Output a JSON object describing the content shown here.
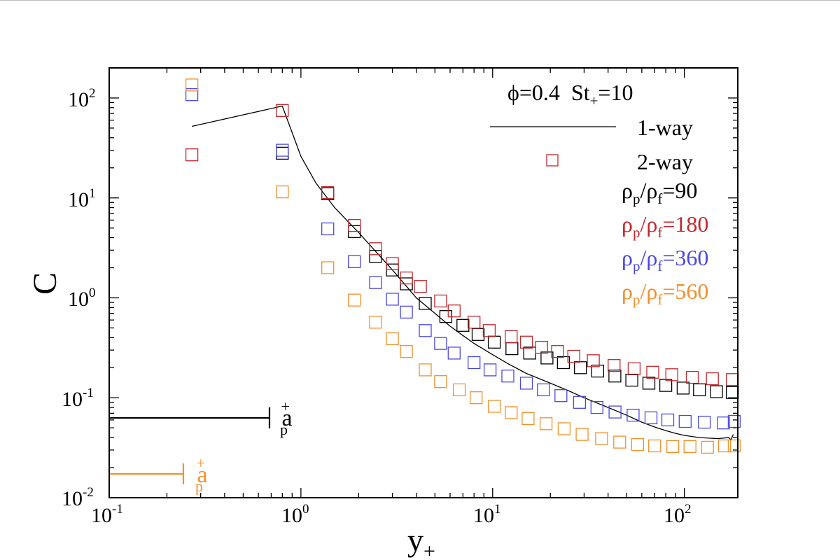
{
  "chart_data": {
    "type": "scatter",
    "title": "",
    "xlabel_main": "y",
    "xlabel_sub": "+",
    "ylabel": "C",
    "xscale": "log",
    "yscale": "log",
    "xlim": [
      0.1,
      190
    ],
    "ylim": [
      0.01,
      200
    ],
    "x_ticks": [
      {
        "value": 0.1,
        "base": "10",
        "exp": "-1"
      },
      {
        "value": 1,
        "base": "10",
        "exp": "0"
      },
      {
        "value": 10,
        "base": "10",
        "exp": "1"
      },
      {
        "value": 100,
        "base": "10",
        "exp": "2"
      }
    ],
    "y_ticks": [
      {
        "value": 0.01,
        "base": "10",
        "exp": "-2"
      },
      {
        "value": 0.1,
        "base": "10",
        "exp": "-1"
      },
      {
        "value": 1,
        "base": "10",
        "exp": "0"
      },
      {
        "value": 10,
        "base": "10",
        "exp": "1"
      },
      {
        "value": 100,
        "base": "10",
        "exp": "2"
      }
    ],
    "legend": {
      "header": {
        "phi": "ϕ=0.4",
        "st_main": "St",
        "st_sub": "+",
        "st_rest": "=10"
      },
      "line_label": "1-way",
      "marker_label": "2-way",
      "marker_color": "#c0282d",
      "ratio_entries": [
        {
          "rho": "ρ",
          "p": "p",
          "slash": "/",
          "f": "f",
          "value": "=90",
          "color": "#000000"
        },
        {
          "rho": "ρ",
          "p": "p",
          "slash": "/",
          "f": "f",
          "value": "=180",
          "color": "#c0282d"
        },
        {
          "rho": "ρ",
          "p": "p",
          "slash": "/",
          "f": "f",
          "value": "=360",
          "color": "#4848e0"
        },
        {
          "rho": "ρ",
          "p": "p",
          "slash": "/",
          "f": "f",
          "value": "=560",
          "color": "#f0902a"
        }
      ]
    },
    "annotations": [
      {
        "main": "a",
        "sup": "+",
        "sub": "p",
        "color": "#000000",
        "x_end": 0.7,
        "y": 0.063
      },
      {
        "main": "a",
        "sup": "+",
        "sub": "p",
        "color": "#f0902a",
        "x_end": 0.25,
        "y": 0.018
      }
    ],
    "line_series": {
      "name": "1-way",
      "color": "#000000",
      "points": [
        [
          0.27,
          52
        ],
        [
          0.8,
          83
        ],
        [
          0.9,
          45
        ],
        [
          1.0,
          26
        ],
        [
          1.2,
          14
        ],
        [
          1.5,
          8
        ],
        [
          2.0,
          4.5
        ],
        [
          2.5,
          2.8
        ],
        [
          3.0,
          1.9
        ],
        [
          3.5,
          1.35
        ],
        [
          4.0,
          1.0
        ],
        [
          5.0,
          0.7
        ],
        [
          6.0,
          0.52
        ],
        [
          7.0,
          0.42
        ],
        [
          8.0,
          0.35
        ],
        [
          10,
          0.27
        ],
        [
          12,
          0.22
        ],
        [
          15,
          0.175
        ],
        [
          20,
          0.14
        ],
        [
          25,
          0.117
        ],
        [
          30,
          0.1
        ],
        [
          40,
          0.08
        ],
        [
          50,
          0.067
        ],
        [
          60,
          0.057
        ],
        [
          70,
          0.051
        ],
        [
          80,
          0.047
        ],
        [
          90,
          0.044
        ],
        [
          100,
          0.042
        ],
        [
          120,
          0.04
        ],
        [
          150,
          0.039
        ],
        [
          170,
          0.04
        ],
        [
          175,
          0.038
        ],
        [
          180,
          0.043
        ]
      ]
    },
    "series": [
      {
        "name": "ρp/ρf=90",
        "color": "#000000",
        "points": [
          [
            0.8,
            28
          ],
          [
            1.38,
            11
          ],
          [
            1.9,
            4.6
          ],
          [
            2.45,
            2.6
          ],
          [
            3.0,
            1.9
          ],
          [
            3.55,
            1.38
          ],
          [
            4.45,
            0.88
          ],
          [
            5.7,
            0.65
          ],
          [
            7.0,
            0.53
          ],
          [
            8.4,
            0.43
          ],
          [
            10.2,
            0.36
          ],
          [
            12.6,
            0.31
          ],
          [
            15.6,
            0.28
          ],
          [
            19.2,
            0.25
          ],
          [
            23.4,
            0.225
          ],
          [
            28.7,
            0.2
          ],
          [
            35.3,
            0.185
          ],
          [
            43.4,
            0.165
          ],
          [
            53.2,
            0.15
          ],
          [
            65.3,
            0.14
          ],
          [
            80.0,
            0.133
          ],
          [
            98.5,
            0.125
          ],
          [
            120,
            0.12
          ],
          [
            147,
            0.115
          ],
          [
            178,
            0.113
          ]
        ]
      },
      {
        "name": "ρp/ρf=180",
        "color": "#c0282d",
        "points": [
          [
            0.27,
            27
          ],
          [
            0.8,
            75
          ],
          [
            1.38,
            11.3
          ],
          [
            1.9,
            5.3
          ],
          [
            2.45,
            3.1
          ],
          [
            3.0,
            2.2
          ],
          [
            3.55,
            1.58
          ],
          [
            4.2,
            1.3
          ],
          [
            5.35,
            0.93
          ],
          [
            6.3,
            0.74
          ],
          [
            8.0,
            0.57
          ],
          [
            9.6,
            0.47
          ],
          [
            12.5,
            0.41
          ],
          [
            15.0,
            0.36
          ],
          [
            18.0,
            0.32
          ],
          [
            21.8,
            0.29
          ],
          [
            26.5,
            0.26
          ],
          [
            33.5,
            0.235
          ],
          [
            43.0,
            0.21
          ],
          [
            54.7,
            0.195
          ],
          [
            68.4,
            0.18
          ],
          [
            86.0,
            0.17
          ],
          [
            110,
            0.16
          ],
          [
            140,
            0.155
          ],
          [
            178,
            0.152
          ]
        ]
      },
      {
        "name": "ρp/ρf=360",
        "color": "#4848e0",
        "points": [
          [
            0.27,
            108
          ],
          [
            0.8,
            30
          ],
          [
            1.38,
            4.9
          ],
          [
            1.9,
            2.3
          ],
          [
            2.45,
            1.42
          ],
          [
            3.0,
            0.97
          ],
          [
            3.55,
            0.72
          ],
          [
            4.45,
            0.47
          ],
          [
            5.35,
            0.35
          ],
          [
            6.3,
            0.28
          ],
          [
            8.0,
            0.225
          ],
          [
            9.7,
            0.19
          ],
          [
            12.0,
            0.165
          ],
          [
            15.0,
            0.14
          ],
          [
            18.4,
            0.12
          ],
          [
            22.7,
            0.105
          ],
          [
            28.4,
            0.09
          ],
          [
            35.0,
            0.08
          ],
          [
            43.5,
            0.072
          ],
          [
            54.0,
            0.067
          ],
          [
            67.0,
            0.063
          ],
          [
            82.0,
            0.06
          ],
          [
            101,
            0.058
          ],
          [
            127,
            0.057
          ],
          [
            160,
            0.056
          ],
          [
            182,
            0.058
          ]
        ]
      },
      {
        "name": "ρp/ρf=560",
        "color": "#f0902a",
        "points": [
          [
            0.27,
            135
          ],
          [
            0.8,
            11.5
          ],
          [
            1.38,
            2.0
          ],
          [
            1.9,
            0.95
          ],
          [
            2.45,
            0.57
          ],
          [
            3.0,
            0.39
          ],
          [
            3.55,
            0.29
          ],
          [
            4.45,
            0.19
          ],
          [
            5.35,
            0.145
          ],
          [
            6.7,
            0.12
          ],
          [
            8.2,
            0.1
          ],
          [
            10.2,
            0.082
          ],
          [
            12.5,
            0.071
          ],
          [
            15.3,
            0.062
          ],
          [
            19.0,
            0.055
          ],
          [
            23.6,
            0.049
          ],
          [
            29.3,
            0.043
          ],
          [
            37.0,
            0.039
          ],
          [
            46.0,
            0.036
          ],
          [
            57.0,
            0.034
          ],
          [
            70.0,
            0.033
          ],
          [
            87.0,
            0.0325
          ],
          [
            107,
            0.0325
          ],
          [
            132,
            0.032
          ],
          [
            162,
            0.033
          ],
          [
            182,
            0.033
          ]
        ]
      }
    ]
  }
}
